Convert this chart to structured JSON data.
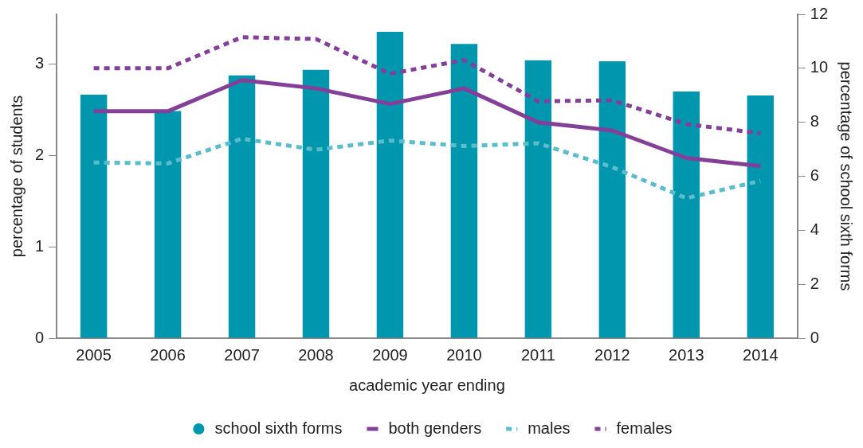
{
  "chart_data": {
    "type": "bar",
    "xlabel": "academic year ending",
    "ylabel": "percentage of students",
    "y2label": "percentage of school sixth forms",
    "categories": [
      "2005",
      "2006",
      "2007",
      "2008",
      "2009",
      "2010",
      "2011",
      "2012",
      "2013",
      "2014"
    ],
    "series": [
      {
        "name": "school sixth forms",
        "axis": "y2",
        "color": "#0096ad",
        "values": [
          9.02,
          8.42,
          9.74,
          9.94,
          11.35,
          10.9,
          10.3,
          10.26,
          9.14,
          8.99
        ]
      },
      {
        "name": "both genders",
        "type": "line",
        "line_style": "solid",
        "color": "#843f98",
        "values": [
          2.48,
          2.48,
          2.82,
          2.73,
          2.56,
          2.73,
          2.36,
          2.27,
          1.97,
          1.88
        ]
      },
      {
        "name": "males",
        "type": "line",
        "line_style": "dashed",
        "color": "#5bbccc",
        "values": [
          1.92,
          1.91,
          2.18,
          2.06,
          2.16,
          2.1,
          2.13,
          1.87,
          1.53,
          1.72
        ]
      },
      {
        "name": "females",
        "type": "line",
        "line_style": "dashed",
        "color": "#843f98",
        "values": [
          2.95,
          2.95,
          3.29,
          3.27,
          2.89,
          3.04,
          2.59,
          2.6,
          2.34,
          2.24
        ]
      }
    ],
    "ylim": [
      0,
      3.54
    ],
    "yticks": [
      0,
      1,
      2,
      3
    ],
    "y2lim": [
      0,
      12
    ],
    "y2ticks": [
      0,
      2,
      4,
      6,
      8,
      10,
      12
    ],
    "grid": false,
    "legend": "bottom",
    "marker": "none"
  }
}
